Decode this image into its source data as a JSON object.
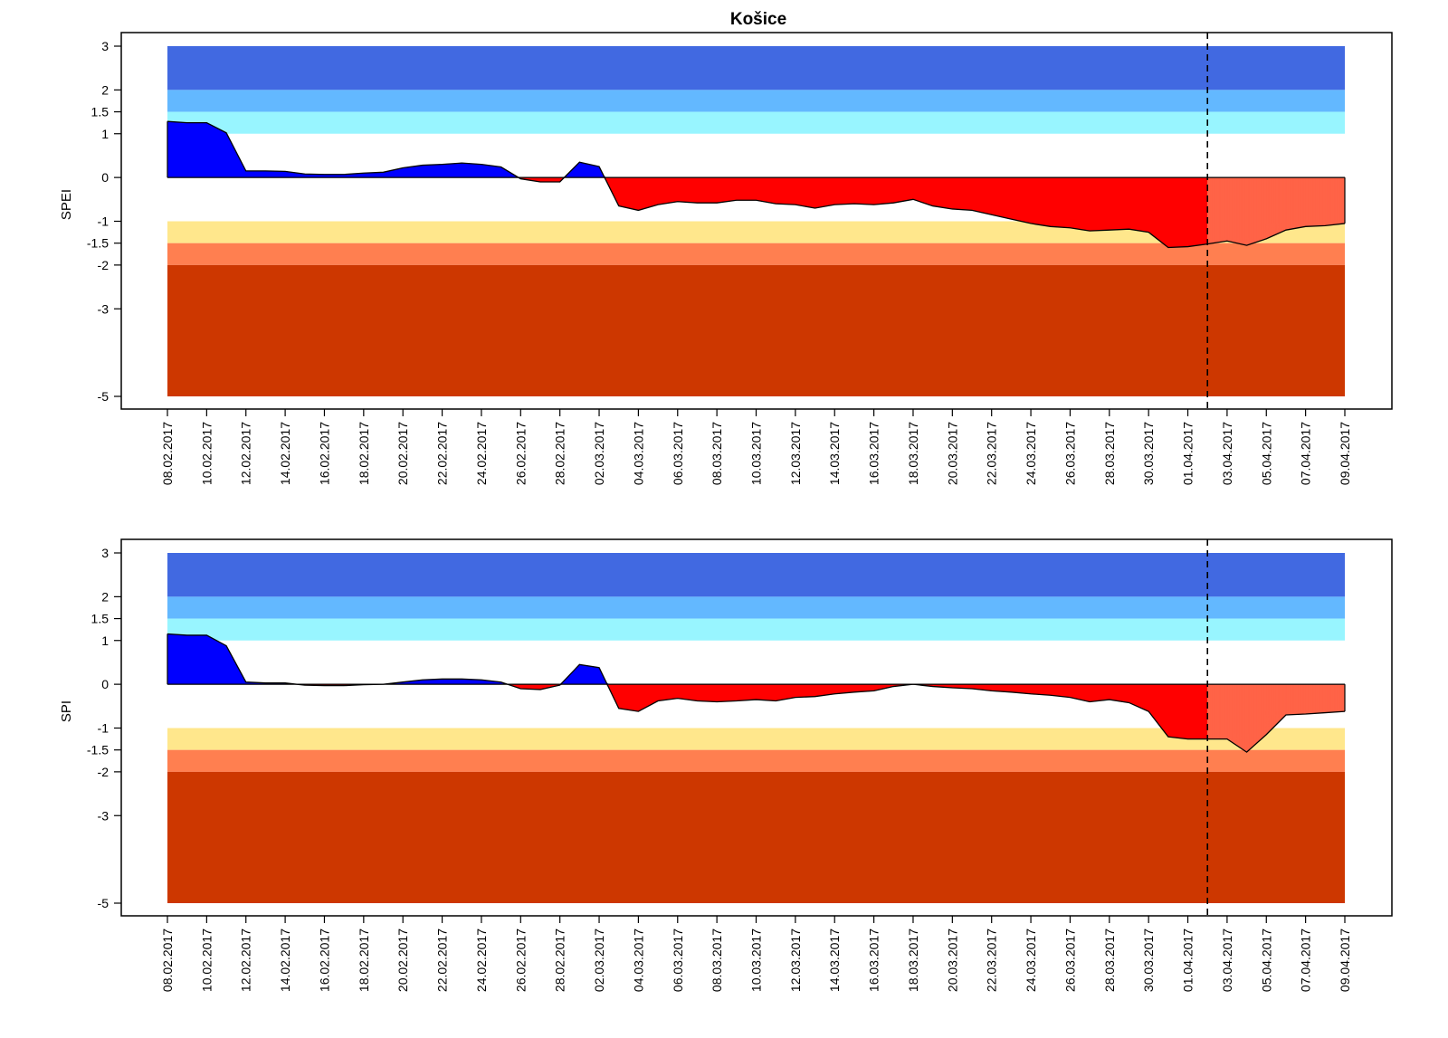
{
  "title": "Košice",
  "chart_data": [
    {
      "type": "area",
      "title": "Košice",
      "ylabel": "SPEI",
      "xlabel": "",
      "ylim": [
        -5,
        3
      ],
      "yticks": [
        3,
        2,
        1.5,
        1,
        0,
        -1,
        -1.5,
        -2,
        -3,
        -5
      ],
      "ytick_labels": [
        "3",
        "2",
        "1.5",
        "1",
        "0",
        "-1",
        "-1.5",
        "-2",
        "-3",
        "-5"
      ],
      "x_start": "08.02.2017",
      "x_end": "09.04.2017",
      "x_tick_labels": [
        "08.02.2017",
        "10.02.2017",
        "12.02.2017",
        "14.02.2017",
        "16.02.2017",
        "18.02.2017",
        "20.02.2017",
        "22.02.2017",
        "24.02.2017",
        "26.02.2017",
        "28.02.2017",
        "02.03.2017",
        "04.03.2017",
        "06.03.2017",
        "08.03.2017",
        "10.03.2017",
        "12.03.2017",
        "14.03.2017",
        "16.03.2017",
        "18.03.2017",
        "20.03.2017",
        "22.03.2017",
        "24.03.2017",
        "26.03.2017",
        "28.03.2017",
        "30.03.2017",
        "01.04.2017",
        "03.04.2017",
        "05.04.2017",
        "07.04.2017",
        "09.04.2017"
      ],
      "forecast_start": "02.04.2017",
      "grid": false,
      "bands": [
        {
          "from": 2,
          "to": 3,
          "color": "#4169e1"
        },
        {
          "from": 1.5,
          "to": 2,
          "color": "#63b8ff"
        },
        {
          "from": 1,
          "to": 1.5,
          "color": "#98f5ff"
        },
        {
          "from": -1.5,
          "to": -1,
          "color": "#ffe78c"
        },
        {
          "from": -2,
          "to": -1.5,
          "color": "#ff7f50"
        },
        {
          "from": -5,
          "to": -2,
          "color": "#cd3700"
        }
      ],
      "colors": {
        "positive": "#0000ff",
        "negative": "#ff0000",
        "forecast_negative": "#ff6347",
        "forecast_line": "#000000"
      },
      "series": [
        {
          "x": [
            "08.02.2017",
            "09.02.2017",
            "10.02.2017",
            "11.02.2017",
            "12.02.2017",
            "13.02.2017",
            "14.02.2017",
            "15.02.2017",
            "16.02.2017",
            "17.02.2017",
            "18.02.2017",
            "19.02.2017",
            "20.02.2017",
            "21.02.2017",
            "22.02.2017",
            "23.02.2017",
            "24.02.2017",
            "25.02.2017",
            "26.02.2017",
            "27.02.2017",
            "28.02.2017",
            "01.03.2017",
            "02.03.2017",
            "03.03.2017",
            "04.03.2017",
            "05.03.2017",
            "06.03.2017",
            "07.03.2017",
            "08.03.2017",
            "09.03.2017",
            "10.03.2017",
            "11.03.2017",
            "12.03.2017",
            "13.03.2017",
            "14.03.2017",
            "15.03.2017",
            "16.03.2017",
            "17.03.2017",
            "18.03.2017",
            "19.03.2017",
            "20.03.2017",
            "21.03.2017",
            "22.03.2017",
            "23.03.2017",
            "24.03.2017",
            "25.03.2017",
            "26.03.2017",
            "27.03.2017",
            "28.03.2017",
            "29.03.2017",
            "30.03.2017",
            "31.03.2017",
            "01.04.2017",
            "02.04.2017",
            "03.04.2017",
            "04.04.2017",
            "05.04.2017",
            "06.04.2017",
            "07.04.2017",
            "08.04.2017",
            "09.04.2017"
          ],
          "values": [
            1.28,
            1.25,
            1.25,
            1.02,
            0.15,
            0.15,
            0.14,
            0.08,
            0.07,
            0.07,
            0.1,
            0.12,
            0.22,
            0.28,
            0.3,
            0.33,
            0.3,
            0.24,
            -0.03,
            -0.1,
            -0.1,
            0.35,
            0.25,
            -0.65,
            -0.75,
            -0.62,
            -0.55,
            -0.58,
            -0.58,
            -0.52,
            -0.52,
            -0.6,
            -0.62,
            -0.7,
            -0.62,
            -0.6,
            -0.62,
            -0.58,
            -0.5,
            -0.65,
            -0.72,
            -0.75,
            -0.85,
            -0.95,
            -1.05,
            -1.12,
            -1.15,
            -1.22,
            -1.2,
            -1.18,
            -1.25,
            -1.6,
            -1.58,
            -1.52,
            -1.45,
            -1.55,
            -1.4,
            -1.2,
            -1.12,
            -1.1,
            -1.05
          ]
        }
      ]
    },
    {
      "type": "area",
      "ylabel": "SPI",
      "xlabel": "",
      "ylim": [
        -5,
        3
      ],
      "yticks": [
        3,
        2,
        1.5,
        1,
        0,
        -1,
        -1.5,
        -2,
        -3,
        -5
      ],
      "ytick_labels": [
        "3",
        "2",
        "1.5",
        "1",
        "0",
        "-1",
        "-1.5",
        "-2",
        "-3",
        "-5"
      ],
      "x_start": "08.02.2017",
      "x_end": "09.04.2017",
      "x_tick_labels": [
        "08.02.2017",
        "10.02.2017",
        "12.02.2017",
        "14.02.2017",
        "16.02.2017",
        "18.02.2017",
        "20.02.2017",
        "22.02.2017",
        "24.02.2017",
        "26.02.2017",
        "28.02.2017",
        "02.03.2017",
        "04.03.2017",
        "06.03.2017",
        "08.03.2017",
        "10.03.2017",
        "12.03.2017",
        "14.03.2017",
        "16.03.2017",
        "18.03.2017",
        "20.03.2017",
        "22.03.2017",
        "24.03.2017",
        "26.03.2017",
        "28.03.2017",
        "30.03.2017",
        "01.04.2017",
        "03.04.2017",
        "05.04.2017",
        "07.04.2017",
        "09.04.2017"
      ],
      "forecast_start": "02.04.2017",
      "grid": false,
      "bands": [
        {
          "from": 2,
          "to": 3,
          "color": "#4169e1"
        },
        {
          "from": 1.5,
          "to": 2,
          "color": "#63b8ff"
        },
        {
          "from": 1,
          "to": 1.5,
          "color": "#98f5ff"
        },
        {
          "from": -1.5,
          "to": -1,
          "color": "#ffe78c"
        },
        {
          "from": -2,
          "to": -1.5,
          "color": "#ff7f50"
        },
        {
          "from": -5,
          "to": -2,
          "color": "#cd3700"
        }
      ],
      "colors": {
        "positive": "#0000ff",
        "negative": "#ff0000",
        "forecast_negative": "#ff6347",
        "forecast_line": "#000000"
      },
      "series": [
        {
          "x": [
            "08.02.2017",
            "09.02.2017",
            "10.02.2017",
            "11.02.2017",
            "12.02.2017",
            "13.02.2017",
            "14.02.2017",
            "15.02.2017",
            "16.02.2017",
            "17.02.2017",
            "18.02.2017",
            "19.02.2017",
            "20.02.2017",
            "21.02.2017",
            "22.02.2017",
            "23.02.2017",
            "24.02.2017",
            "25.02.2017",
            "26.02.2017",
            "27.02.2017",
            "28.02.2017",
            "01.03.2017",
            "02.03.2017",
            "03.03.2017",
            "04.03.2017",
            "05.03.2017",
            "06.03.2017",
            "07.03.2017",
            "08.03.2017",
            "09.03.2017",
            "10.03.2017",
            "11.03.2017",
            "12.03.2017",
            "13.03.2017",
            "14.03.2017",
            "15.03.2017",
            "16.03.2017",
            "17.03.2017",
            "18.03.2017",
            "19.03.2017",
            "20.03.2017",
            "21.03.2017",
            "22.03.2017",
            "23.03.2017",
            "24.03.2017",
            "25.03.2017",
            "26.03.2017",
            "27.03.2017",
            "28.03.2017",
            "29.03.2017",
            "30.03.2017",
            "31.03.2017",
            "01.04.2017",
            "02.04.2017",
            "03.04.2017",
            "04.04.2017",
            "05.04.2017",
            "06.04.2017",
            "07.04.2017",
            "08.04.2017",
            "09.04.2017"
          ],
          "values": [
            1.15,
            1.12,
            1.12,
            0.88,
            0.05,
            0.03,
            0.03,
            -0.02,
            -0.03,
            -0.03,
            -0.01,
            0.0,
            0.05,
            0.1,
            0.12,
            0.12,
            0.1,
            0.05,
            -0.1,
            -0.12,
            -0.02,
            0.45,
            0.38,
            -0.55,
            -0.62,
            -0.38,
            -0.32,
            -0.38,
            -0.4,
            -0.38,
            -0.35,
            -0.38,
            -0.3,
            -0.28,
            -0.22,
            -0.18,
            -0.15,
            -0.05,
            0.0,
            -0.05,
            -0.08,
            -0.1,
            -0.15,
            -0.18,
            -0.22,
            -0.25,
            -0.3,
            -0.4,
            -0.35,
            -0.42,
            -0.62,
            -1.2,
            -1.25,
            -1.25,
            -1.25,
            -1.55,
            -1.15,
            -0.7,
            -0.68,
            -0.65,
            -0.62
          ]
        }
      ]
    }
  ]
}
